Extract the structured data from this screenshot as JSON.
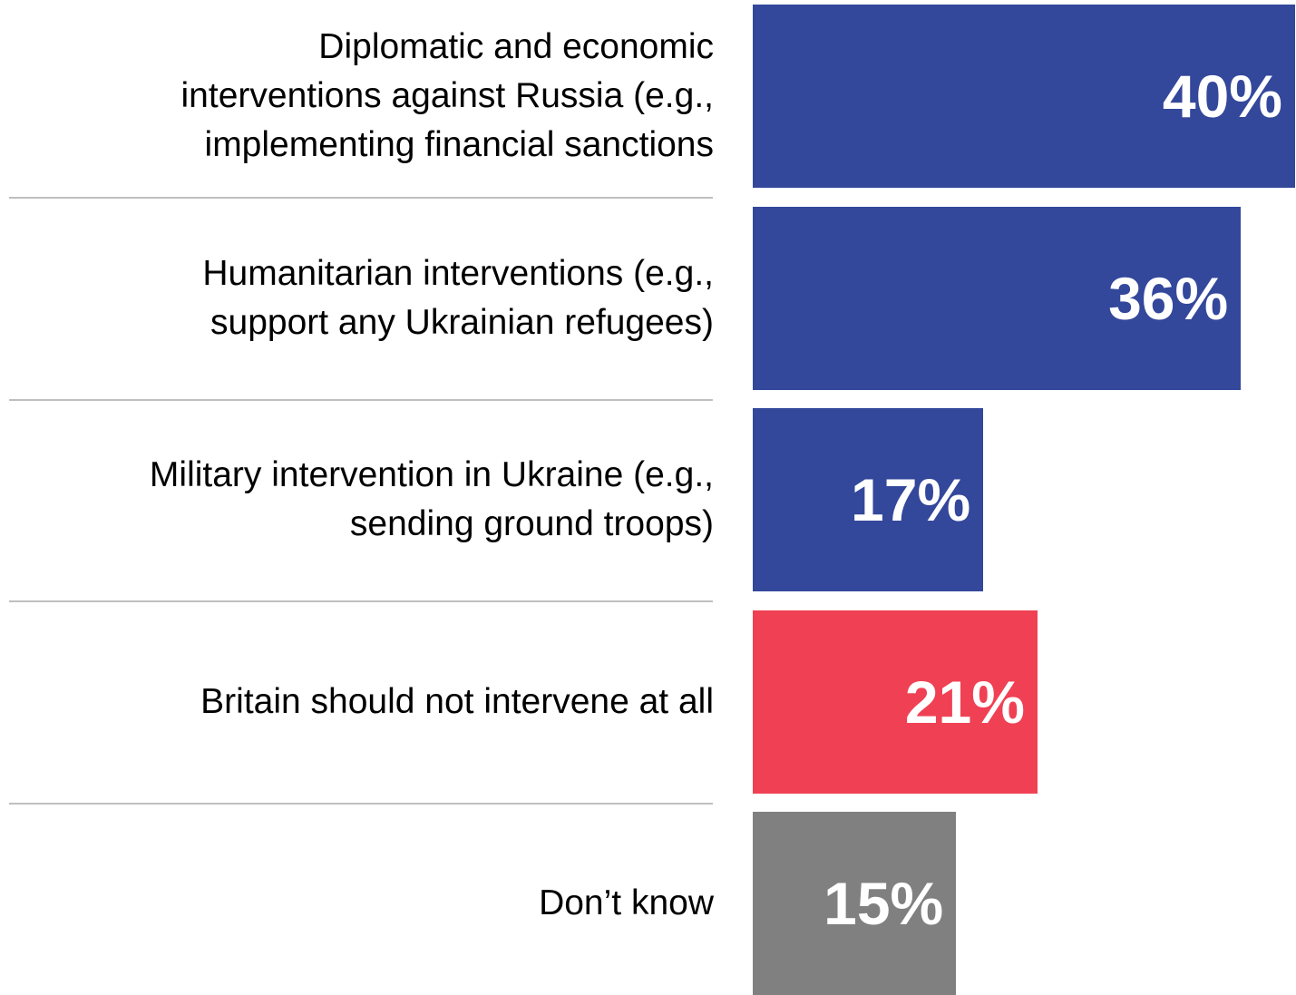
{
  "chart_data": {
    "type": "bar",
    "orientation": "horizontal",
    "title": "",
    "xlabel": "",
    "ylabel": "",
    "xlim": [
      0,
      40
    ],
    "grid": false,
    "legend": "none",
    "categories": [
      "Diplomatic and economic interventions against Russia (e.g., implementing financial sanctions",
      "Humanitarian interventions (e.g., support any Ukrainian refugees)",
      "Military intervention in Ukraine (e.g., sending ground troops)",
      "Britain should not intervene at all",
      "Don’t know"
    ],
    "values": [
      40,
      36,
      17,
      21,
      15
    ],
    "value_labels": [
      "40%",
      "36%",
      "17%",
      "21%",
      "15%"
    ],
    "colors": [
      "#33479b",
      "#33479b",
      "#33479b",
      "#f04154",
      "#808080"
    ]
  }
}
